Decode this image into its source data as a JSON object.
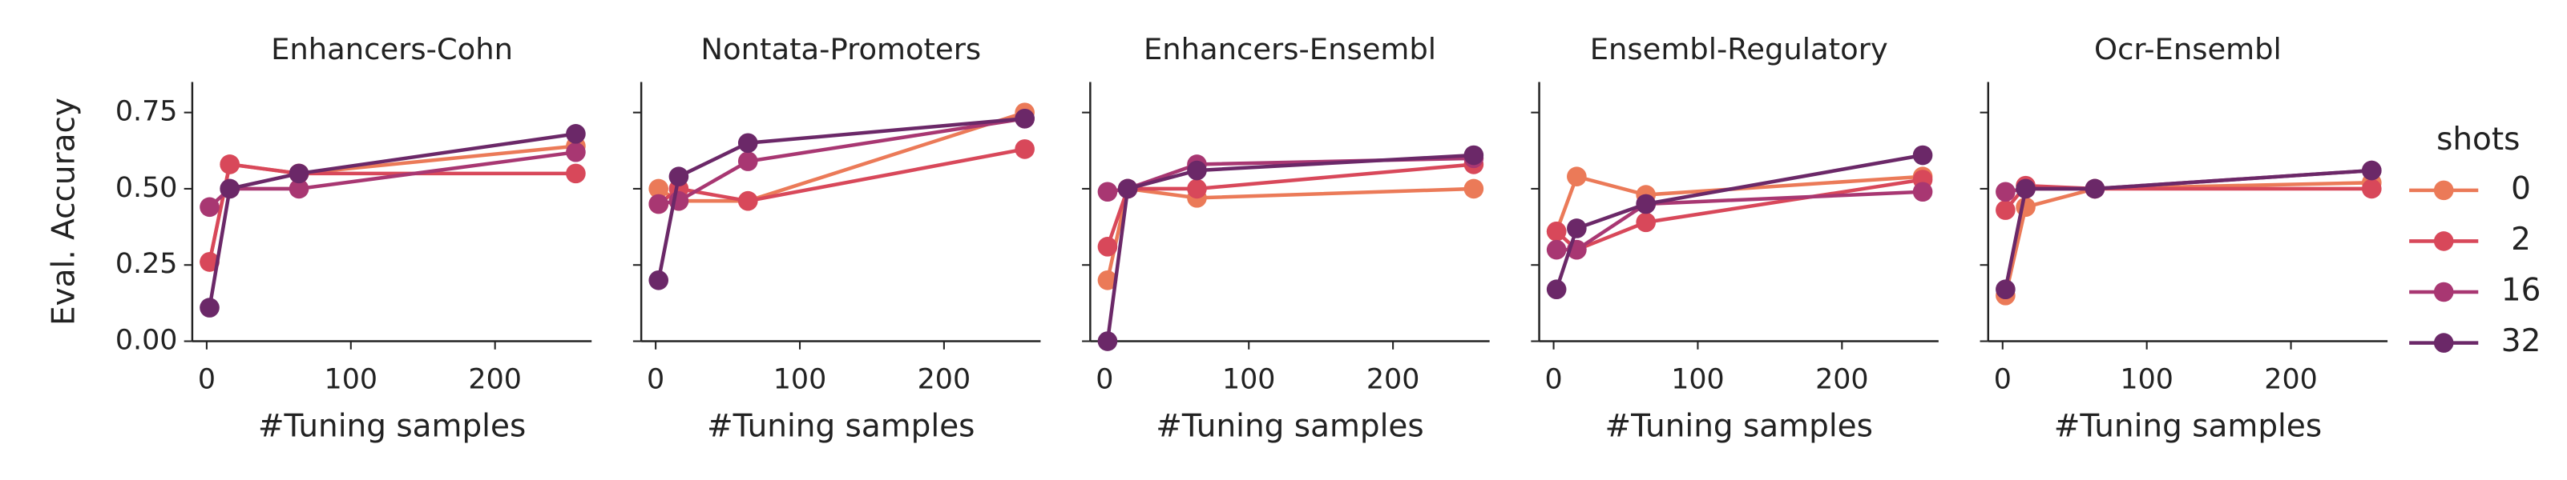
{
  "chart_data": [
    {
      "type": "line",
      "title": "Enhancers-Cohn",
      "x_label": "#Tuning samples",
      "y_label": "Eval. Accuracy",
      "legend_title": "shots",
      "legend": "right",
      "x": [
        2,
        16,
        64,
        256
      ],
      "xlim": [
        -10,
        267
      ],
      "ylim": [
        0,
        0.85
      ],
      "xticks": [
        0,
        100,
        200
      ],
      "yticks": [
        {
          "value": 0,
          "label": "0.00"
        },
        {
          "value": 0.25,
          "label": "0.25"
        },
        {
          "value": 0.5,
          "label": "0.50"
        },
        {
          "value": 0.75,
          "label": "0.75"
        }
      ],
      "series": [
        {
          "name": "0",
          "color": "#eb7a58",
          "values": [
            0.26,
            0.58,
            0.55,
            0.64
          ]
        },
        {
          "name": "2",
          "color": "#d8485a",
          "values": [
            0.26,
            0.58,
            0.55,
            0.55
          ]
        },
        {
          "name": "16",
          "color": "#a83772",
          "values": [
            0.44,
            0.5,
            0.5,
            0.62
          ]
        },
        {
          "name": "32",
          "color": "#6b2868",
          "values": [
            0.11,
            0.5,
            0.55,
            0.68
          ]
        }
      ]
    },
    {
      "type": "line",
      "title": "Nontata-Promoters",
      "x_label": "#Tuning samples",
      "x": [
        2,
        16,
        64,
        256
      ],
      "xlim": [
        -10,
        267
      ],
      "ylim": [
        0,
        0.85
      ],
      "xticks": [
        0,
        100,
        200
      ],
      "yticks": [
        0,
        0.25,
        0.5,
        0.75
      ],
      "series": [
        {
          "name": "0",
          "color": "#eb7a58",
          "values": [
            0.5,
            0.46,
            0.46,
            0.75
          ]
        },
        {
          "name": "2",
          "color": "#d8485a",
          "values": [
            0.45,
            0.5,
            0.46,
            0.63
          ]
        },
        {
          "name": "16",
          "color": "#a83772",
          "values": [
            0.45,
            0.46,
            0.59,
            0.73
          ]
        },
        {
          "name": "32",
          "color": "#6b2868",
          "values": [
            0.2,
            0.54,
            0.65,
            0.73
          ]
        }
      ]
    },
    {
      "type": "line",
      "title": "Enhancers-Ensembl",
      "x_label": "#Tuning samples",
      "x": [
        2,
        16,
        64,
        256
      ],
      "xlim": [
        -10,
        267
      ],
      "ylim": [
        0,
        0.85
      ],
      "xticks": [
        0,
        100,
        200
      ],
      "yticks": [
        0,
        0.25,
        0.5,
        0.75
      ],
      "series": [
        {
          "name": "0",
          "color": "#eb7a58",
          "values": [
            0.2,
            0.5,
            0.47,
            0.5
          ]
        },
        {
          "name": "2",
          "color": "#d8485a",
          "values": [
            0.31,
            0.5,
            0.5,
            0.58
          ]
        },
        {
          "name": "16",
          "color": "#a83772",
          "values": [
            0.49,
            0.5,
            0.58,
            0.6
          ]
        },
        {
          "name": "32",
          "color": "#6b2868",
          "values": [
            0.0,
            0.5,
            0.56,
            0.61
          ]
        }
      ]
    },
    {
      "type": "line",
      "title": "Ensembl-Regulatory",
      "x_label": "#Tuning samples",
      "x": [
        2,
        16,
        64,
        256
      ],
      "xlim": [
        -10,
        267
      ],
      "ylim": [
        0,
        0.85
      ],
      "xticks": [
        0,
        100,
        200
      ],
      "yticks": [
        0,
        0.25,
        0.5,
        0.75
      ],
      "series": [
        {
          "name": "0",
          "color": "#eb7a58",
          "values": [
            0.36,
            0.54,
            0.48,
            0.54
          ]
        },
        {
          "name": "2",
          "color": "#d8485a",
          "values": [
            0.36,
            0.3,
            0.39,
            0.53
          ]
        },
        {
          "name": "16",
          "color": "#a83772",
          "values": [
            0.3,
            0.3,
            0.45,
            0.49
          ]
        },
        {
          "name": "32",
          "color": "#6b2868",
          "values": [
            0.17,
            0.37,
            0.45,
            0.61
          ]
        }
      ]
    },
    {
      "type": "line",
      "title": "Ocr-Ensembl",
      "x_label": "#Tuning samples",
      "x": [
        2,
        16,
        64,
        256
      ],
      "xlim": [
        -10,
        267
      ],
      "ylim": [
        0,
        0.85
      ],
      "xticks": [
        0,
        100,
        200
      ],
      "yticks": [
        0,
        0.25,
        0.5,
        0.75
      ],
      "series": [
        {
          "name": "0",
          "color": "#eb7a58",
          "values": [
            0.15,
            0.44,
            0.5,
            0.52
          ]
        },
        {
          "name": "2",
          "color": "#d8485a",
          "values": [
            0.43,
            0.51,
            0.5,
            0.5
          ]
        },
        {
          "name": "16",
          "color": "#a83772",
          "values": [
            0.49,
            0.5,
            0.5,
            0.56
          ]
        },
        {
          "name": "32",
          "color": "#6b2868",
          "values": [
            0.17,
            0.5,
            0.5,
            0.56
          ]
        }
      ]
    }
  ]
}
